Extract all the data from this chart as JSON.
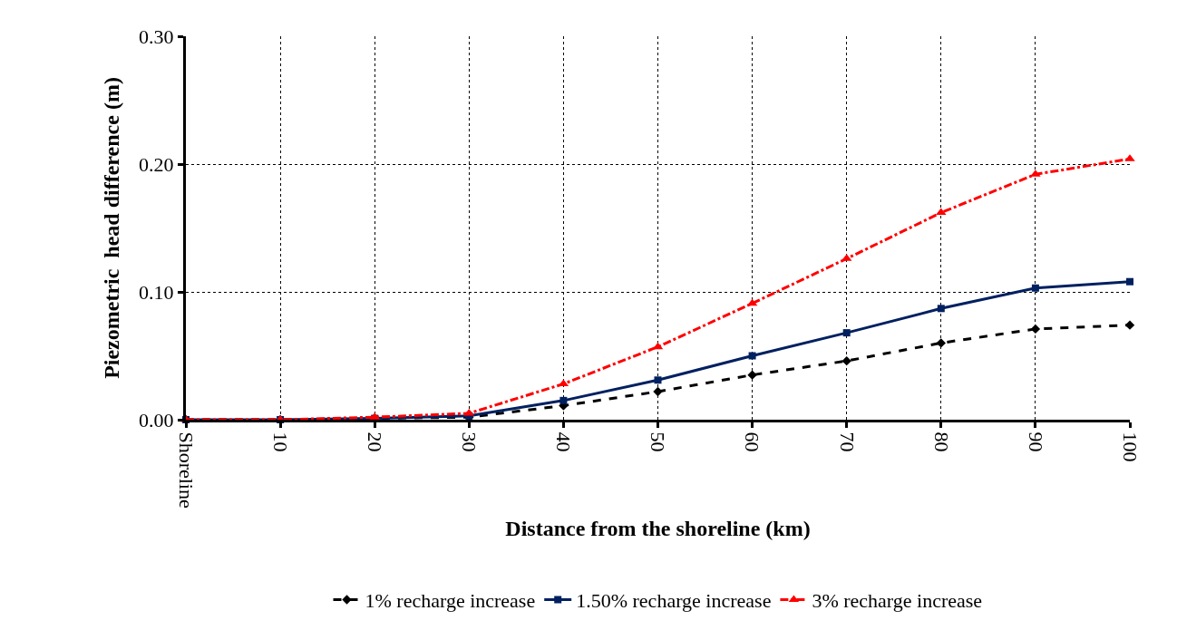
{
  "chart_data": {
    "type": "line",
    "xlabel": "Distance from the shoreline (km)",
    "ylabel": "Piezometric  head difference (m)",
    "categories": [
      "Shoreline",
      "10",
      "20",
      "30",
      "40",
      "50",
      "60",
      "70",
      "80",
      "90",
      "100"
    ],
    "series": [
      {
        "name": "1% recharge increase",
        "color": "#000000",
        "marker": "diamond",
        "line_style": "dashed",
        "values": [
          0,
          0,
          0.001,
          0.002,
          0.011,
          0.022,
          0.035,
          0.046,
          0.06,
          0.071,
          0.074
        ]
      },
      {
        "name": "1.50% recharge increase",
        "color": "#002060",
        "marker": "square",
        "line_style": "solid",
        "values": [
          0,
          0,
          0.001,
          0.003,
          0.015,
          0.031,
          0.05,
          0.068,
          0.087,
          0.103,
          0.108
        ]
      },
      {
        "name": "3% recharge increase",
        "color": "#ff0000",
        "marker": "triangle",
        "line_style": "dashdot",
        "values": [
          0,
          0,
          0.002,
          0.005,
          0.028,
          0.057,
          0.091,
          0.126,
          0.162,
          0.192,
          0.204
        ]
      }
    ],
    "ylim": [
      0,
      0.3
    ],
    "yticks": [
      {
        "value": 0,
        "label": "0.00"
      },
      {
        "value": 0.1,
        "label": "0.10"
      },
      {
        "value": 0.2,
        "label": "0.20"
      },
      {
        "value": 0.3,
        "label": "0.30"
      }
    ],
    "grid": true,
    "legend": "bottom"
  }
}
